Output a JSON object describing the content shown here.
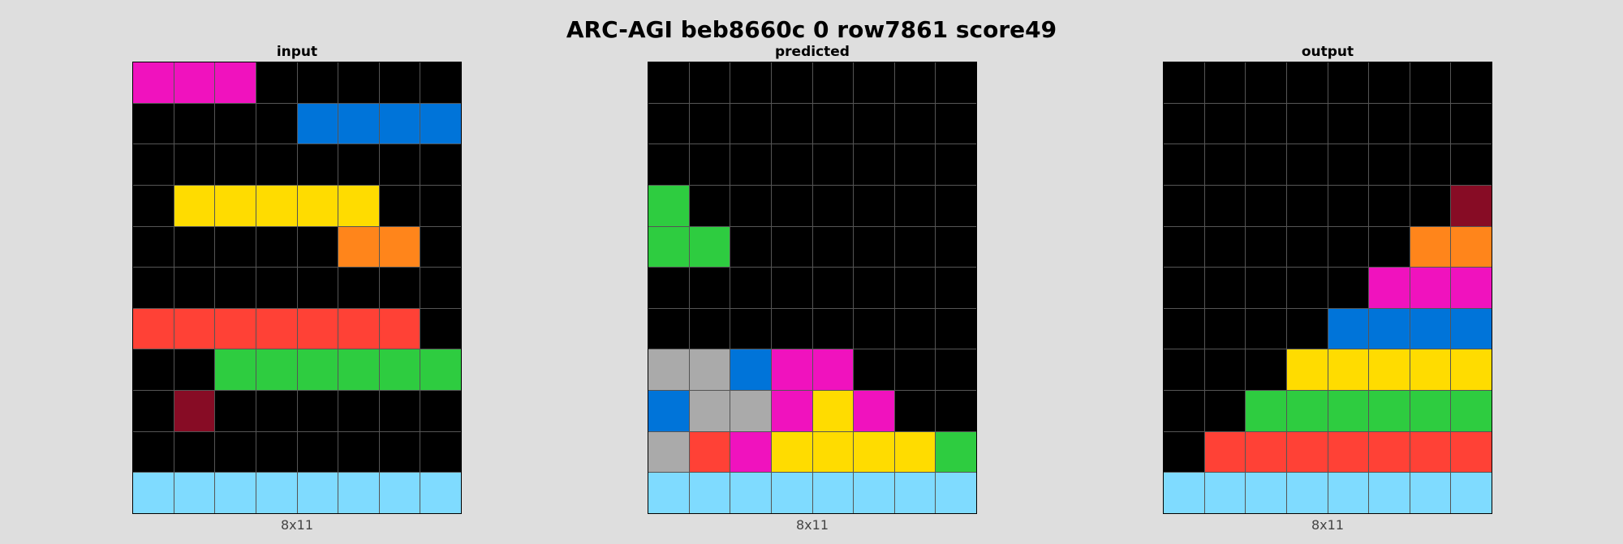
{
  "title": "ARC-AGI beb8660c 0 row7861 score49",
  "palette": {
    "0": "#000000",
    "1": "#0074D9",
    "2": "#FF4136",
    "3": "#2ECC40",
    "4": "#FFDC00",
    "5": "#AAAAAA",
    "6": "#F012BE",
    "7": "#FF851B",
    "8": "#7FDBFF",
    "9": "#870C25"
  },
  "panels": [
    {
      "label": "input",
      "dims": "8x11",
      "grid": [
        [
          6,
          6,
          6,
          0,
          0,
          0,
          0,
          0
        ],
        [
          0,
          0,
          0,
          0,
          1,
          1,
          1,
          1
        ],
        [
          0,
          0,
          0,
          0,
          0,
          0,
          0,
          0
        ],
        [
          0,
          4,
          4,
          4,
          4,
          4,
          0,
          0
        ],
        [
          0,
          0,
          0,
          0,
          0,
          7,
          7,
          0
        ],
        [
          0,
          0,
          0,
          0,
          0,
          0,
          0,
          0
        ],
        [
          2,
          2,
          2,
          2,
          2,
          2,
          2,
          0
        ],
        [
          0,
          0,
          3,
          3,
          3,
          3,
          3,
          3
        ],
        [
          0,
          9,
          0,
          0,
          0,
          0,
          0,
          0
        ],
        [
          0,
          0,
          0,
          0,
          0,
          0,
          0,
          0
        ],
        [
          8,
          8,
          8,
          8,
          8,
          8,
          8,
          8
        ]
      ]
    },
    {
      "label": "predicted",
      "dims": "8x11",
      "grid": [
        [
          0,
          0,
          0,
          0,
          0,
          0,
          0,
          0
        ],
        [
          0,
          0,
          0,
          0,
          0,
          0,
          0,
          0
        ],
        [
          0,
          0,
          0,
          0,
          0,
          0,
          0,
          0
        ],
        [
          3,
          0,
          0,
          0,
          0,
          0,
          0,
          0
        ],
        [
          3,
          3,
          0,
          0,
          0,
          0,
          0,
          0
        ],
        [
          0,
          0,
          0,
          0,
          0,
          0,
          0,
          0
        ],
        [
          0,
          0,
          0,
          0,
          0,
          0,
          0,
          0
        ],
        [
          5,
          5,
          1,
          6,
          6,
          0,
          0,
          0
        ],
        [
          1,
          5,
          5,
          6,
          4,
          6,
          0,
          0
        ],
        [
          5,
          2,
          6,
          4,
          4,
          4,
          4,
          3
        ],
        [
          8,
          8,
          8,
          8,
          8,
          8,
          8,
          8
        ]
      ]
    },
    {
      "label": "output",
      "dims": "8x11",
      "grid": [
        [
          0,
          0,
          0,
          0,
          0,
          0,
          0,
          0
        ],
        [
          0,
          0,
          0,
          0,
          0,
          0,
          0,
          0
        ],
        [
          0,
          0,
          0,
          0,
          0,
          0,
          0,
          0
        ],
        [
          0,
          0,
          0,
          0,
          0,
          0,
          0,
          9
        ],
        [
          0,
          0,
          0,
          0,
          0,
          0,
          7,
          7
        ],
        [
          0,
          0,
          0,
          0,
          0,
          6,
          6,
          6
        ],
        [
          0,
          0,
          0,
          0,
          1,
          1,
          1,
          1
        ],
        [
          0,
          0,
          0,
          4,
          4,
          4,
          4,
          4
        ],
        [
          0,
          0,
          3,
          3,
          3,
          3,
          3,
          3
        ],
        [
          0,
          2,
          2,
          2,
          2,
          2,
          2,
          2
        ],
        [
          8,
          8,
          8,
          8,
          8,
          8,
          8,
          8
        ]
      ]
    }
  ]
}
